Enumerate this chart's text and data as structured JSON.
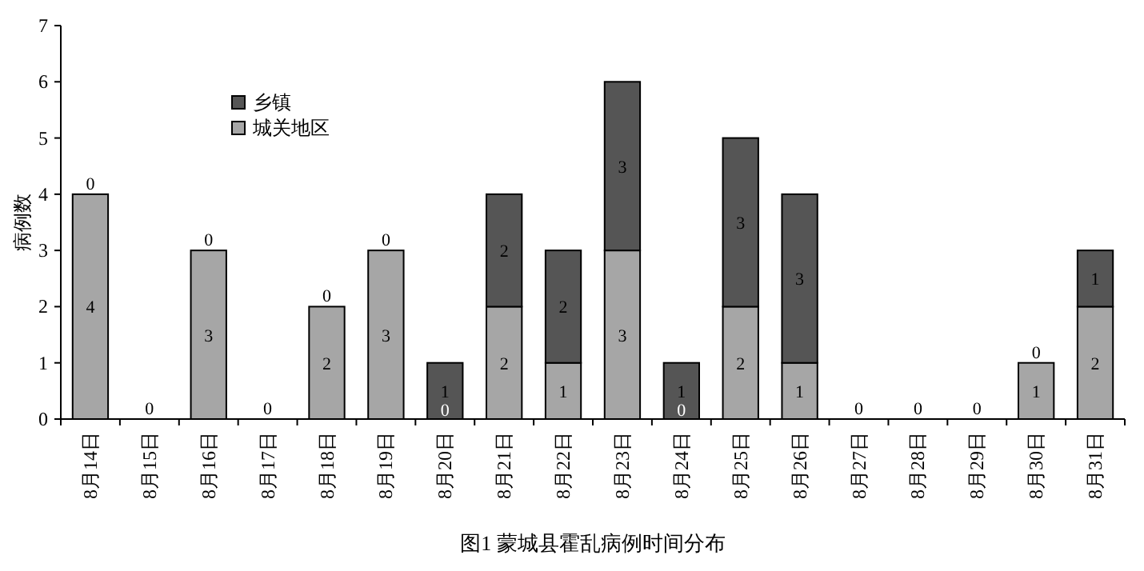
{
  "chart_data": {
    "type": "bar",
    "stacked": true,
    "title": "图1   蒙城县霍乱病例时间分布",
    "ylabel": "病例数",
    "categories": [
      "8月14日",
      "8月15日",
      "8月16日",
      "8月17日",
      "8月18日",
      "8月19日",
      "8月20日",
      "8月21日",
      "8月22日",
      "8月23日",
      "8月24日",
      "8月25日",
      "8月26日",
      "8月27日",
      "8月28日",
      "8月29日",
      "8月30日",
      "8月31日"
    ],
    "series": [
      {
        "name": "城关地区",
        "color": "#a6a6a6",
        "values": [
          4,
          0,
          3,
          0,
          2,
          3,
          0,
          2,
          1,
          3,
          0,
          2,
          1,
          0,
          0,
          0,
          1,
          2
        ],
        "value_labels": [
          "4",
          "0",
          "3",
          "0",
          "2",
          "3",
          "0",
          "2",
          "1",
          "3",
          "0",
          "2",
          "1",
          "0",
          "0",
          "0",
          "1",
          "2"
        ]
      },
      {
        "name": "乡镇",
        "color": "#555555",
        "values": [
          0,
          0,
          0,
          0,
          0,
          0,
          1,
          2,
          2,
          3,
          1,
          3,
          3,
          0,
          0,
          0,
          0,
          1
        ],
        "value_labels": [
          "0",
          null,
          "0",
          null,
          "0",
          "0",
          "1",
          "2",
          "2",
          "3",
          "1",
          "3",
          "3",
          null,
          null,
          null,
          "0",
          "1"
        ]
      }
    ],
    "ylim": [
      0,
      7
    ],
    "yticks": [
      0,
      1,
      2,
      3,
      4,
      5,
      6,
      7
    ],
    "legend": "top left",
    "grid": false
  }
}
